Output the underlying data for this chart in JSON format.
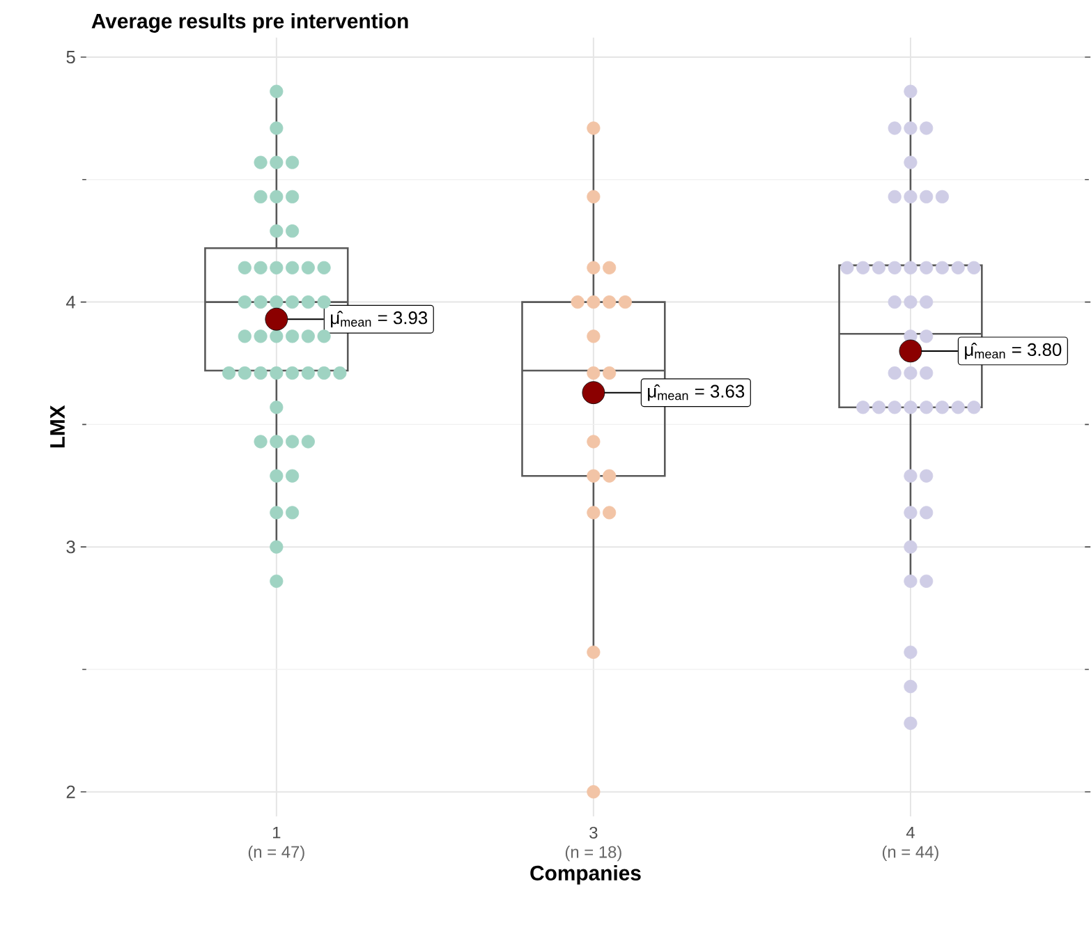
{
  "chart_data": {
    "type": "box",
    "title": "Average results pre intervention",
    "xlabel": "Companies",
    "ylabel": "LMX",
    "categories": [
      "1",
      "3",
      "4"
    ],
    "boxes": [
      {
        "low": 3.0,
        "q1": 3.72,
        "median": 4.0,
        "q3": 4.22,
        "high": 4.86,
        "mean": 3.93
      },
      {
        "low": 2.57,
        "q1": 3.29,
        "median": 3.72,
        "q3": 4.0,
        "high": 4.71,
        "mean": 3.63
      },
      {
        "low": 2.86,
        "q1": 3.57,
        "median": 3.87,
        "q3": 4.15,
        "high": 4.86,
        "mean": 3.8
      }
    ],
    "series": [
      {
        "type": "scatter",
        "color": "#9fd3c2",
        "x": [
          "1",
          "1",
          "1",
          "1",
          "1",
          "1",
          "1",
          "1",
          "1",
          "1",
          "1",
          "1",
          "1",
          "1",
          "1",
          "1",
          "1",
          "1",
          "1",
          "1",
          "1",
          "1",
          "1",
          "1",
          "1",
          "1",
          "1",
          "1",
          "1",
          "1",
          "1",
          "1",
          "1",
          "1",
          "1",
          "1",
          "1",
          "1",
          "1",
          "1",
          "1",
          "1",
          "1",
          "1",
          "1",
          "1",
          "1"
        ],
        "values": [
          4.86,
          4.71,
          4.57,
          4.57,
          4.57,
          4.43,
          4.43,
          4.43,
          4.29,
          4.29,
          4.14,
          4.14,
          4.14,
          4.14,
          4.14,
          4.14,
          4.0,
          4.0,
          4.0,
          4.0,
          4.0,
          4.0,
          3.86,
          3.86,
          3.86,
          3.86,
          3.86,
          3.86,
          3.71,
          3.71,
          3.71,
          3.71,
          3.71,
          3.71,
          3.71,
          3.71,
          3.57,
          3.43,
          3.43,
          3.43,
          3.43,
          3.29,
          3.29,
          3.14,
          3.14,
          3.0,
          2.86
        ]
      },
      {
        "type": "scatter",
        "color": "#f2c4a6",
        "x": [
          "3",
          "3",
          "3",
          "3",
          "3",
          "3",
          "3",
          "3",
          "3",
          "3",
          "3",
          "3",
          "3",
          "3",
          "3",
          "3",
          "3",
          "3"
        ],
        "values": [
          4.71,
          4.43,
          4.14,
          4.14,
          4.0,
          4.0,
          4.0,
          4.0,
          3.86,
          3.71,
          3.71,
          3.43,
          3.29,
          3.29,
          3.14,
          3.14,
          2.57,
          2.0
        ]
      },
      {
        "type": "scatter",
        "color": "#cfcde6",
        "x": [
          "4",
          "4",
          "4",
          "4",
          "4",
          "4",
          "4",
          "4",
          "4",
          "4",
          "4",
          "4",
          "4",
          "4",
          "4",
          "4",
          "4",
          "4",
          "4",
          "4",
          "4",
          "4",
          "4",
          "4",
          "4",
          "4",
          "4",
          "4",
          "4",
          "4",
          "4",
          "4",
          "4",
          "4",
          "4",
          "4",
          "4",
          "4",
          "4",
          "4",
          "4",
          "4",
          "4",
          "4"
        ],
        "values": [
          4.86,
          4.71,
          4.71,
          4.71,
          4.57,
          4.43,
          4.43,
          4.43,
          4.43,
          4.14,
          4.14,
          4.14,
          4.14,
          4.14,
          4.14,
          4.14,
          4.14,
          4.14,
          4.0,
          4.0,
          4.0,
          3.86,
          3.86,
          3.71,
          3.71,
          3.71,
          3.57,
          3.57,
          3.57,
          3.57,
          3.57,
          3.57,
          3.57,
          3.57,
          3.29,
          3.29,
          3.14,
          3.14,
          3.0,
          2.86,
          2.86,
          2.57,
          2.43,
          2.28
        ]
      }
    ],
    "annotations": [
      "μ̂$_{mean}$ = 3.93",
      "μ̂$_{mean}$ = 3.63",
      "μ̂$_{mean}$ = 3.80",
      "(n = 47)",
      "(n = 18)",
      "(n = 44)"
    ],
    "ylim": [
      1.9,
      5.08
    ],
    "yticks": [
      2,
      3,
      4,
      5
    ],
    "grid": true
  }
}
